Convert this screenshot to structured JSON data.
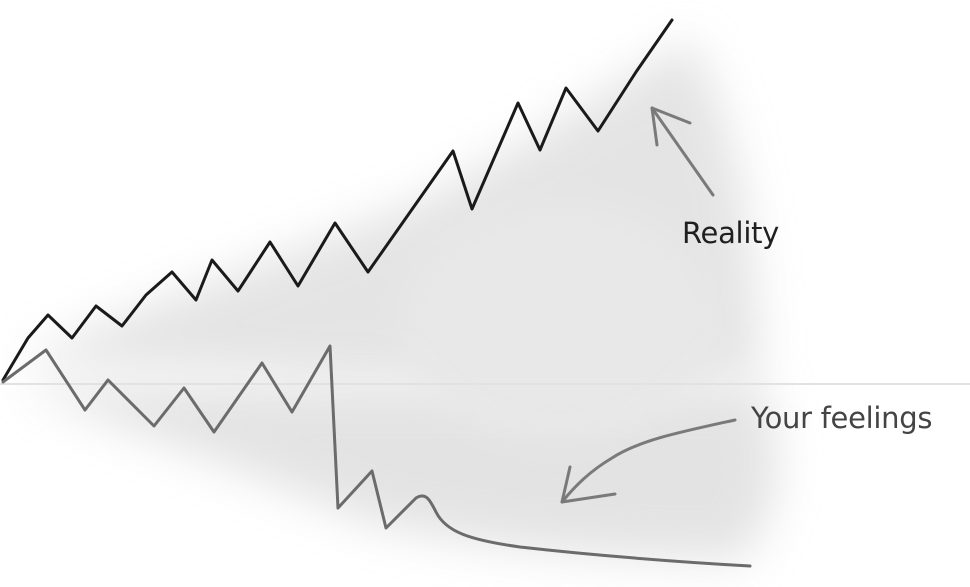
{
  "labels": {
    "reality": "Reality",
    "feelings": "Your feelings"
  },
  "colors": {
    "reality_line": "#1a1a1a",
    "feelings_line": "#6b6b6b",
    "baseline": "#e2e2e2",
    "arrow": "#7a7a7a",
    "shade": "#cfcfcf"
  }
}
